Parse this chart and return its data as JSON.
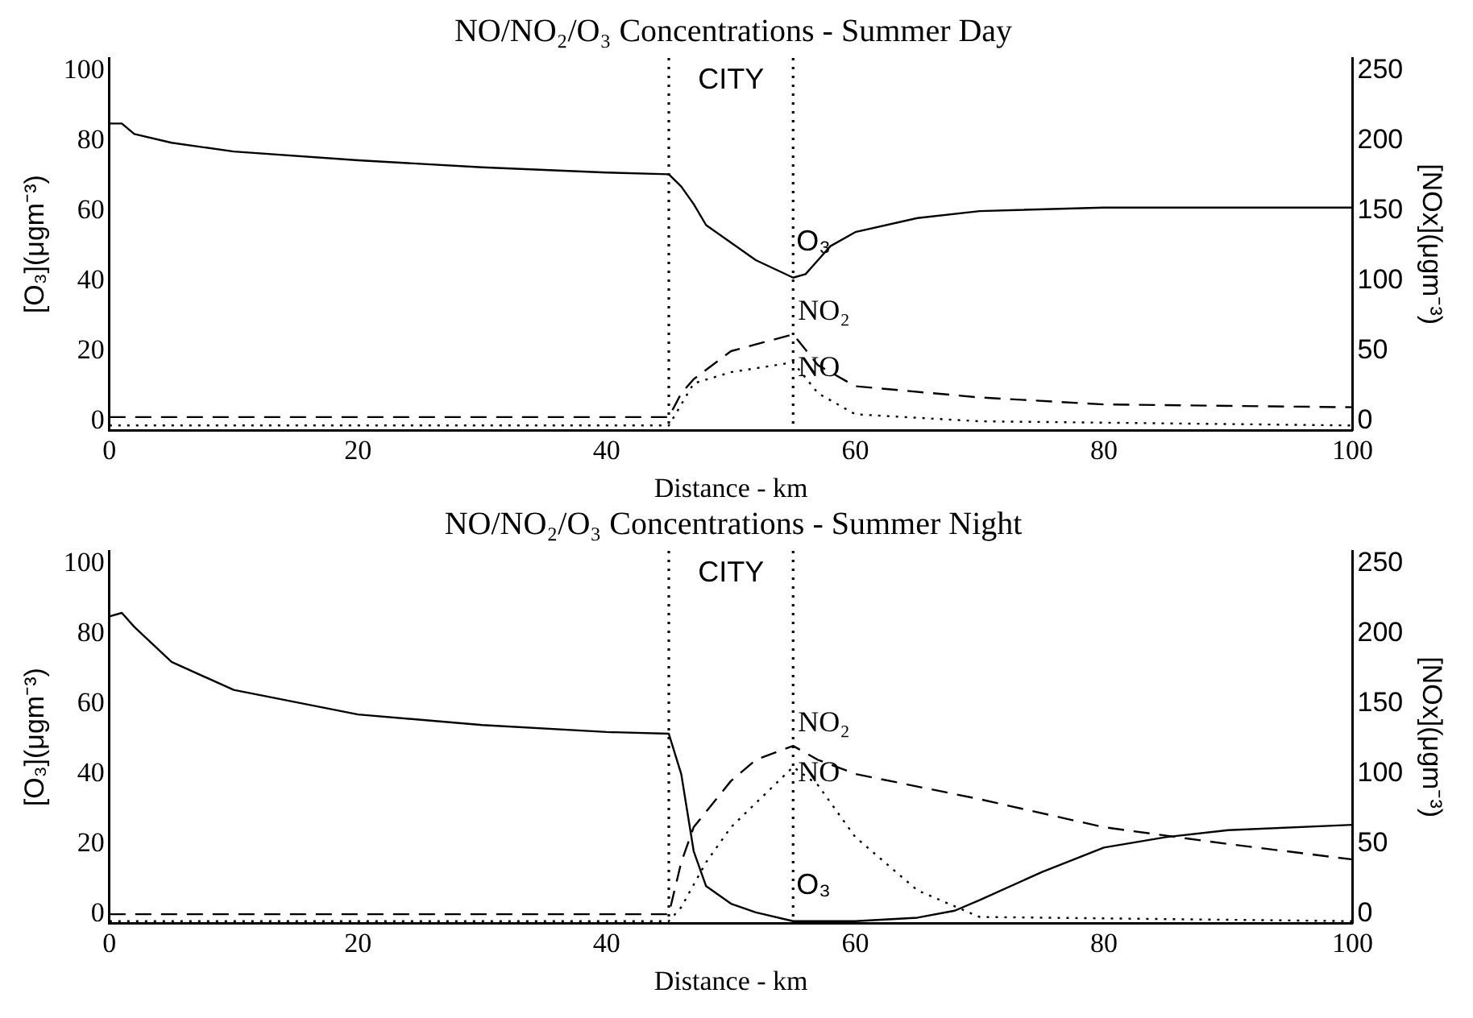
{
  "chart_data": [
    {
      "type": "line",
      "title": "NO/NO₂/O₃ Concentrations - Summer Day",
      "xlabel": "Distance - km",
      "ylabel": "[O₃](μgm⁻³)",
      "y2label": "[NOx](μgm⁻³)",
      "xlim": [
        0,
        100
      ],
      "xticks": [
        0,
        20,
        40,
        60,
        80,
        100
      ],
      "ylim": [
        -2.6,
        103.7
      ],
      "yticks": [
        0,
        20,
        40,
        60,
        80,
        100
      ],
      "y2lim": [
        -6.5,
        259
      ],
      "y2ticks": [
        0,
        50,
        100,
        150,
        200,
        250
      ],
      "grid": false,
      "legend": false,
      "marker": "none",
      "ref_lines": [
        {
          "axis": "x",
          "value": 45,
          "line_style": "dotted",
          "color": "#000000"
        },
        {
          "axis": "x",
          "value": 55,
          "line_style": "dotted",
          "color": "#000000"
        }
      ],
      "annotations": [
        "CITY"
      ],
      "series": [
        {
          "name": "O₃",
          "color": "#000000",
          "line_style": "solid",
          "x": [
            0,
            1,
            2,
            5,
            10,
            20,
            30,
            40,
            45,
            46,
            47,
            48,
            50,
            52,
            55,
            56,
            57,
            58,
            60,
            65,
            70,
            80,
            100
          ],
          "values": [
            85,
            85,
            82,
            79.5,
            77,
            74.5,
            72.5,
            71,
            70.5,
            67,
            62,
            56,
            51,
            46,
            41,
            42,
            46,
            50,
            54,
            58,
            60,
            61,
            61
          ]
        },
        {
          "name": "NO₂",
          "color": "#000000",
          "line_style": "dashed",
          "axis": "y2",
          "x": [
            0,
            45,
            46,
            47,
            50,
            55,
            57,
            60,
            70,
            80,
            100
          ],
          "values": [
            3,
            3,
            20,
            30,
            50,
            62,
            40,
            25,
            17,
            12,
            10
          ]
        },
        {
          "name": "NO",
          "color": "#000000",
          "line_style": "dotted",
          "axis": "y2",
          "x": [
            0,
            45,
            46,
            47,
            50,
            55,
            57,
            60,
            70,
            100
          ],
          "values": [
            -3,
            -3,
            12,
            27,
            35,
            42,
            20,
            5,
            0,
            -3
          ]
        }
      ]
    },
    {
      "type": "line",
      "title": "NO/NO₂/O₃ Concentrations - Summer Night",
      "xlabel": "Distance - km",
      "ylabel": "[O₃](μgm⁻³)",
      "y2label": "[NOx](μgm⁻³)",
      "xlim": [
        0,
        100
      ],
      "xticks": [
        0,
        20,
        40,
        60,
        80,
        100
      ],
      "ylim": [
        -2.6,
        103.7
      ],
      "yticks": [
        0,
        20,
        40,
        60,
        80,
        100
      ],
      "y2lim": [
        -6.5,
        259
      ],
      "y2ticks": [
        0,
        50,
        100,
        150,
        200,
        250
      ],
      "grid": false,
      "legend": false,
      "marker": "none",
      "ref_lines": [
        {
          "axis": "x",
          "value": 45,
          "line_style": "dotted",
          "color": "#000000"
        },
        {
          "axis": "x",
          "value": 55,
          "line_style": "dotted",
          "color": "#000000"
        }
      ],
      "annotations": [
        "CITY"
      ],
      "series": [
        {
          "name": "O₃",
          "color": "#000000",
          "line_style": "solid",
          "x": [
            0,
            1,
            2,
            5,
            10,
            20,
            30,
            40,
            45,
            46,
            47,
            48,
            50,
            52,
            55,
            60,
            65,
            68,
            70,
            75,
            80,
            85,
            90,
            100
          ],
          "values": [
            85,
            86,
            82,
            72,
            64,
            57,
            54,
            52,
            51.5,
            40,
            18,
            8,
            3,
            0.5,
            -2,
            -2,
            -1,
            1,
            4,
            12,
            19,
            22,
            24,
            25.5
          ]
        },
        {
          "name": "NO₂",
          "color": "#000000",
          "line_style": "dashed",
          "axis": "y2",
          "x": [
            0,
            45,
            46,
            47,
            50,
            52,
            55,
            57,
            60,
            70,
            80,
            90,
            100
          ],
          "values": [
            0,
            0,
            37,
            62,
            95,
            110,
            120,
            110,
            100,
            82,
            62,
            50,
            39
          ]
        },
        {
          "name": "NO",
          "color": "#000000",
          "line_style": "dotted",
          "axis": "y2",
          "x": [
            0,
            45,
            46,
            48,
            50,
            55,
            57,
            60,
            65,
            70,
            100
          ],
          "values": [
            -5,
            -5,
            5,
            37,
            62,
            105,
            92,
            55,
            17,
            -2,
            -5
          ]
        }
      ]
    }
  ]
}
